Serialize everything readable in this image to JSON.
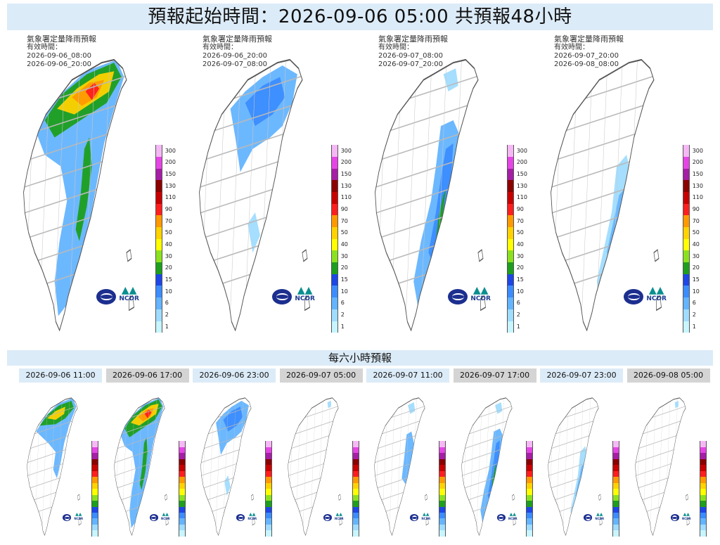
{
  "header": {
    "title": "預報起始時間：2026-09-06 05:00  共預報48小時"
  },
  "panels": [
    {
      "title": "氣象署定量降雨預報",
      "valid_label": "有效時間：",
      "start": "2026-09-06_08:00",
      "end": "2026-09-06_20:00",
      "intensity": "heavy"
    },
    {
      "title": "氣象署定量降雨預報",
      "valid_label": "有效時間：",
      "start": "2026-09-06_20:00",
      "end": "2026-09-07_08:00",
      "intensity": "north"
    },
    {
      "title": "氣象署定量降雨預報",
      "valid_label": "有效時間：",
      "start": "2026-09-07_08:00",
      "end": "2026-09-07_20:00",
      "intensity": "east"
    },
    {
      "title": "氣象署定量降雨預報",
      "valid_label": "有效時間：",
      "start": "2026-09-07_20:00",
      "end": "2026-09-08_08:00",
      "intensity": "light"
    }
  ],
  "legend": {
    "levels": [
      "300",
      "200",
      "150",
      "130",
      "110",
      "90",
      "70",
      "50",
      "40",
      "30",
      "20",
      "15",
      "10",
      "6",
      "2",
      "1"
    ],
    "colors": [
      "#f5b8f5",
      "#e645e6",
      "#a51ea5",
      "#8c0000",
      "#c80000",
      "#ff1e1e",
      "#ff9900",
      "#ffd200",
      "#ffff00",
      "#8ce11e",
      "#1e9e1e",
      "#1e46e6",
      "#3c8cff",
      "#64b4ff",
      "#a0dcff",
      "#c8f5ff"
    ]
  },
  "logos": {
    "ncdr": "NCDR"
  },
  "six_hour": {
    "title": "每六小時預報",
    "steps": [
      {
        "label": "2026-09-06 11:00",
        "intensity": "heavy-sm"
      },
      {
        "label": "2026-09-06 17:00",
        "intensity": "heavy"
      },
      {
        "label": "2026-09-06 23:00",
        "intensity": "north"
      },
      {
        "label": "2026-09-07 05:00",
        "intensity": "none"
      },
      {
        "label": "2026-09-07 11:00",
        "intensity": "east-sm"
      },
      {
        "label": "2026-09-07 17:00",
        "intensity": "east"
      },
      {
        "label": "2026-09-07 23:00",
        "intensity": "light"
      },
      {
        "label": "2026-09-08 05:00",
        "intensity": "none"
      }
    ]
  }
}
